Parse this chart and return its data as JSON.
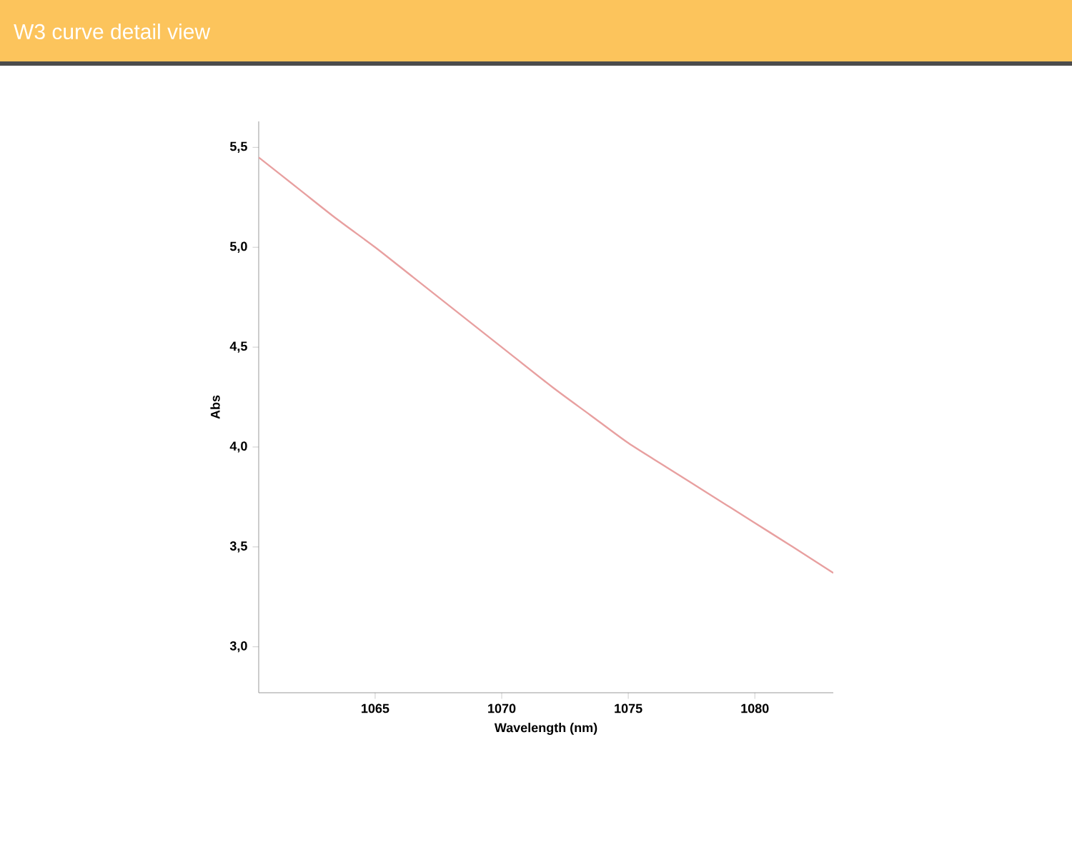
{
  "chart_data": {
    "type": "line",
    "title": "W3  curve detail view",
    "xlabel": "Wavelength (nm)",
    "ylabel": "Abs",
    "series": [
      {
        "color": "#e8a0a0",
        "x": [
          1060.4,
          1062,
          1063.5,
          1065,
          1066.5,
          1068,
          1070,
          1072,
          1073.5,
          1075,
          1076.5,
          1078,
          1080,
          1081.5,
          1083.1
        ],
        "values": [
          5.45,
          5.29,
          5.14,
          5.0,
          4.85,
          4.7,
          4.5,
          4.3,
          4.16,
          4.02,
          3.9,
          3.78,
          3.62,
          3.5,
          3.37
        ]
      }
    ],
    "xlim": [
      1060.4,
      1083.1
    ],
    "ylim": [
      2.77,
      5.63
    ],
    "xticks": [
      1065,
      1070,
      1075,
      1080
    ],
    "yticks": [
      {
        "value": 3.0,
        "label": "3,0"
      },
      {
        "value": 3.5,
        "label": "3,5"
      },
      {
        "value": 4.0,
        "label": "4,0"
      },
      {
        "value": 4.5,
        "label": "4,5"
      },
      {
        "value": 5.0,
        "label": "5,0"
      },
      {
        "value": 5.5,
        "label": "5,5"
      }
    ],
    "grid": false,
    "marker": "none",
    "line_style": "solid"
  }
}
